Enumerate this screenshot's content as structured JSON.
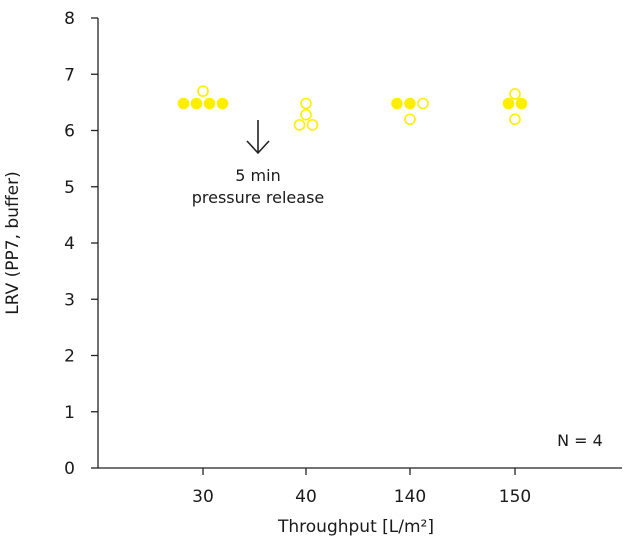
{
  "chart_data": {
    "type": "scatter",
    "xlabel": "Throughput [L/m²]",
    "ylabel": "LRV (PP7, buffer)",
    "categories": [
      "30",
      "40",
      "140",
      "150"
    ],
    "ylim": [
      0,
      8
    ],
    "yticks": [
      "0",
      "1",
      "2",
      "3",
      "4",
      "5",
      "6",
      "7",
      "8"
    ],
    "grid": false,
    "marker_color": "#ffee00",
    "series": [
      {
        "marker": "filled",
        "points": [
          {
            "x": "30",
            "y": 6.48
          },
          {
            "x": "30",
            "y": 6.48
          },
          {
            "x": "30",
            "y": 6.48
          },
          {
            "x": "30",
            "y": 6.48
          },
          {
            "x": "140",
            "y": 6.48
          },
          {
            "x": "140",
            "y": 6.48
          },
          {
            "x": "150",
            "y": 6.48
          },
          {
            "x": "150",
            "y": 6.48
          }
        ]
      },
      {
        "marker": "open",
        "points": [
          {
            "x": "30",
            "y": 6.7
          },
          {
            "x": "40",
            "y": 6.48
          },
          {
            "x": "40",
            "y": 6.28
          },
          {
            "x": "40",
            "y": 6.1
          },
          {
            "x": "40",
            "y": 6.1
          },
          {
            "x": "140",
            "y": 6.48
          },
          {
            "x": "140",
            "y": 6.2
          },
          {
            "x": "150",
            "y": 6.65
          },
          {
            "x": "150",
            "y": 6.2
          }
        ]
      }
    ],
    "annotation": {
      "line1": "5 min",
      "line2": "pressure release",
      "arrow": "down"
    },
    "note": "N = 4"
  }
}
